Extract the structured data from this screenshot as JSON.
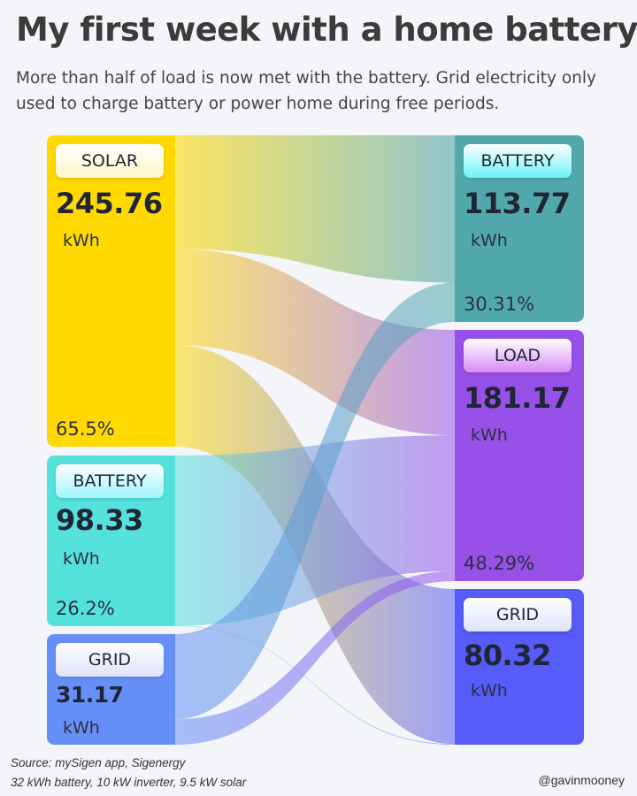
{
  "title": "My first week with a home battery",
  "subtitle": "More than half of load is now met with the battery. Grid electricity only used to charge battery or power home during free periods.",
  "footer": {
    "source": "Source: mySigen app, Sigenergy",
    "specs": "32 kWh battery, 10 kW inverter, 9.5 kW solar",
    "credit": "@gavinmooney"
  },
  "chart_data": {
    "type": "sankey",
    "unit": "kWh",
    "nodes": [
      {
        "id": "src_solar",
        "label": "SOLAR",
        "value": "245.76",
        "unit": "kWh",
        "percent": "65.5%",
        "side": "left",
        "color": "#FFD900",
        "pill_color": "#FFF6C8"
      },
      {
        "id": "src_battery",
        "label": "BATTERY",
        "value": "98.33",
        "unit": "kWh",
        "percent": "26.2%",
        "side": "left",
        "color": "#55E2DD",
        "pill_color": "#9EF5FA"
      },
      {
        "id": "src_grid",
        "label": "GRID",
        "value": "31.17",
        "unit": "kWh",
        "percent": "",
        "side": "left",
        "color": "#6690F7",
        "pill_color": "#DDE3FA"
      },
      {
        "id": "dst_battery",
        "label": "BATTERY",
        "value": "113.77",
        "unit": "kWh",
        "percent": "30.31%",
        "side": "right",
        "color": "#52A9AC",
        "pill_color": "#6CF2FA"
      },
      {
        "id": "dst_load",
        "label": "LOAD",
        "value": "181.17",
        "unit": "kWh",
        "percent": "48.29%",
        "side": "right",
        "color": "#9750E8",
        "pill_color": "#D98AF5"
      },
      {
        "id": "dst_grid",
        "label": "GRID",
        "value": "80.32",
        "unit": "kWh",
        "percent": "",
        "side": "right",
        "color": "#575BF7",
        "pill_color": "#DDE3FA"
      }
    ],
    "flows": [
      {
        "from": "src_solar",
        "to": "dst_battery",
        "value": 89.76
      },
      {
        "from": "src_solar",
        "to": "dst_load",
        "value": 76.0
      },
      {
        "from": "src_solar",
        "to": "dst_grid",
        "value": 80.0
      },
      {
        "from": "src_battery",
        "to": "dst_load",
        "value": 98.01
      },
      {
        "from": "src_battery",
        "to": "dst_grid",
        "value": 0.32
      },
      {
        "from": "src_grid",
        "to": "dst_battery",
        "value": 24.01
      },
      {
        "from": "src_grid",
        "to": "dst_load",
        "value": 7.16
      }
    ]
  }
}
